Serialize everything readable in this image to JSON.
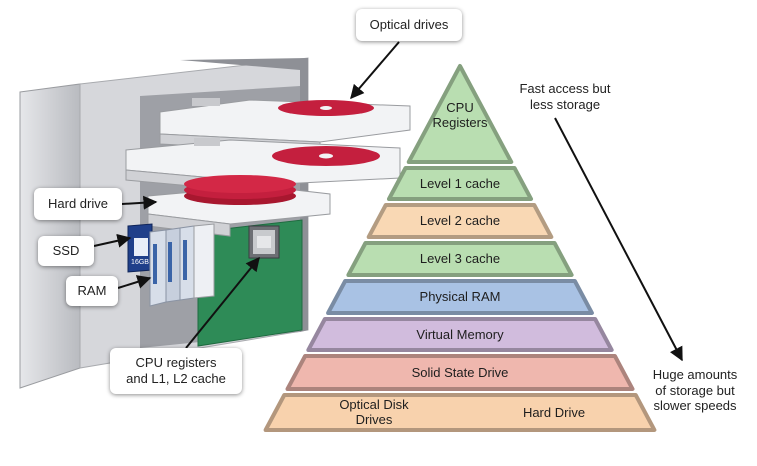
{
  "callouts": {
    "optical_drives": "Optical drives",
    "hard_drive": "Hard drive",
    "ssd": "SSD",
    "ram": "RAM",
    "cpu": "CPU registers\nand L1, L2 cache"
  },
  "notes": {
    "top": "Fast access but\nless storage",
    "bottom": "Huge amounts\nof storage but\nslower speeds"
  },
  "pyramid": {
    "tiers": [
      {
        "label": "CPU\nRegisters",
        "color": "#b9deb1"
      },
      {
        "label": "Level 1 cache",
        "color": "#b9deb1"
      },
      {
        "label": "Level 2 cache",
        "color": "#f9d8b4"
      },
      {
        "label": "Level 3 cache",
        "color": "#b9deb1"
      },
      {
        "label": "Physical RAM",
        "color": "#a9c2e4"
      },
      {
        "label": "Virtual Memory",
        "color": "#d1bcdd"
      },
      {
        "label": "Solid State Drive",
        "color": "#efb7ae"
      },
      {
        "left_label": "Optical Disk\nDrives",
        "right_label": "Hard Drive",
        "color": "#f8d2ad"
      }
    ]
  },
  "colors": {
    "disc_red": "#c41f3e",
    "board_green": "#2e8b57",
    "case_gray": "#cfd0d4"
  },
  "icons": {
    "ssd_card_text": "16GB"
  }
}
